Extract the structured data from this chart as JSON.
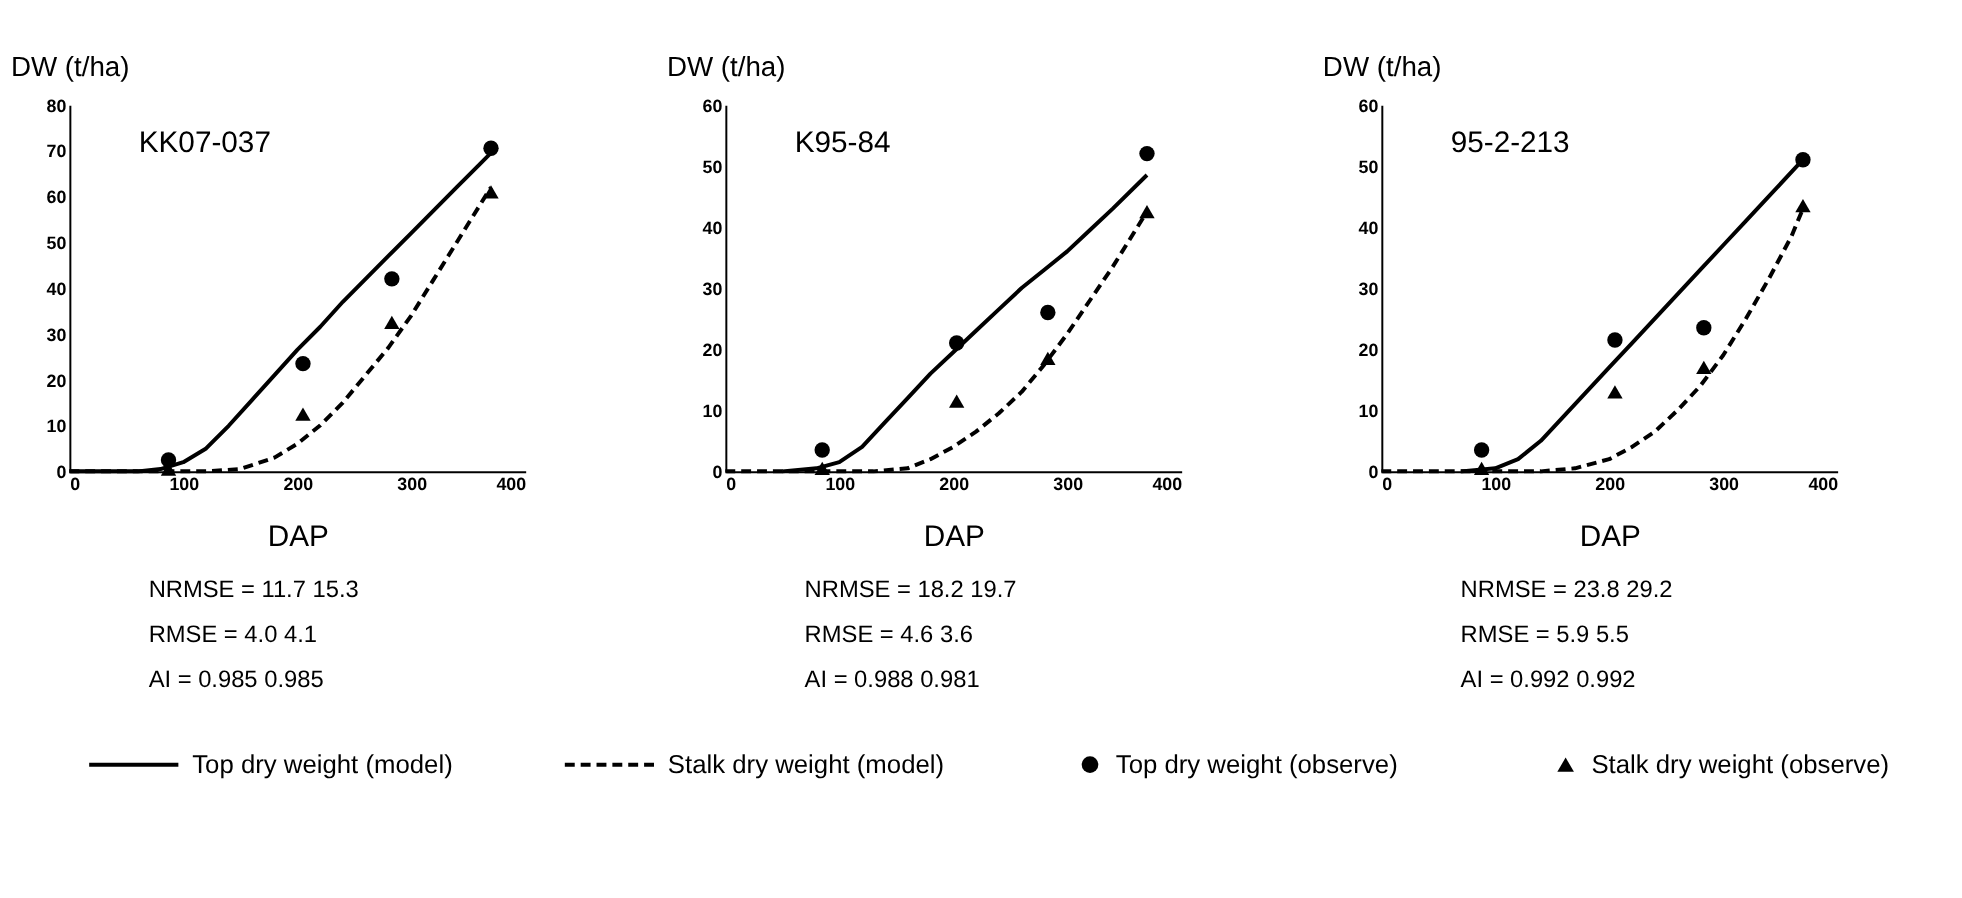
{
  "chart_data": [
    {
      "type": "line",
      "title": "KK07-037",
      "xlabel": "DAP",
      "ylabel": "DW (t/ha)",
      "xlim": [
        0,
        400
      ],
      "xticks": [
        0,
        100,
        200,
        300,
        400
      ],
      "ylim": [
        0,
        80
      ],
      "yticks": [
        0,
        10,
        20,
        30,
        40,
        50,
        60,
        70,
        80
      ],
      "grid": false,
      "legend": "bottom",
      "series": [
        {
          "name": "Top dry weight (model)",
          "line_style": "solid",
          "color": "#000000",
          "x": [
            0,
            60,
            80,
            100,
            120,
            140,
            160,
            180,
            200,
            220,
            240,
            260,
            280,
            300,
            320,
            340,
            360,
            370
          ],
          "values": [
            0,
            0,
            0.5,
            2,
            5,
            10,
            15.5,
            21,
            26.5,
            31.5,
            37,
            42,
            47,
            52,
            57,
            62,
            67,
            69.5
          ]
        },
        {
          "name": "Stalk dry weight (model)",
          "line_style": "dashed",
          "color": "#000000",
          "x": [
            0,
            120,
            150,
            180,
            200,
            220,
            240,
            260,
            280,
            300,
            320,
            340,
            360,
            370
          ],
          "values": [
            0,
            0,
            0.5,
            3,
            6,
            10,
            15,
            21,
            27,
            34,
            42,
            50,
            58,
            62
          ]
        },
        {
          "name": "Top dry weight (observe)",
          "type": "scatter",
          "marker": "circle",
          "color": "#000000",
          "x": [
            87,
            205,
            283,
            370
          ],
          "values": [
            2.5,
            23.5,
            42,
            70.5
          ]
        },
        {
          "name": "Stalk dry weight (observe)",
          "type": "scatter",
          "marker": "triangle",
          "color": "#000000",
          "x": [
            87,
            205,
            283,
            370
          ],
          "values": [
            0.5,
            12.5,
            32.5,
            61
          ]
        }
      ],
      "annotations": [
        "NRMSE   =   11.7      15.3",
        "RMSE      =   4.0        4.1",
        "AI           =   0.985    0.985"
      ]
    },
    {
      "type": "line",
      "title": "K95-84",
      "xlabel": "DAP",
      "ylabel": "DW (t/ha)",
      "xlim": [
        0,
        400
      ],
      "xticks": [
        0,
        100,
        200,
        300,
        400
      ],
      "ylim": [
        0,
        60
      ],
      "yticks": [
        0,
        10,
        20,
        30,
        40,
        50,
        60
      ],
      "grid": false,
      "series": [
        {
          "line_style": "solid",
          "color": "#000000",
          "x": [
            50,
            80,
            100,
            120,
            140,
            160,
            180,
            200,
            220,
            240,
            260,
            280,
            300,
            320,
            340,
            370
          ],
          "values": [
            0,
            0.5,
            1.5,
            4,
            8,
            12,
            16,
            19.5,
            23,
            26.5,
            30,
            33,
            36,
            39.5,
            43,
            48.5
          ]
        },
        {
          "line_style": "dashed",
          "color": "#000000",
          "x": [
            0,
            130,
            160,
            180,
            200,
            220,
            240,
            260,
            280,
            300,
            320,
            340,
            360,
            370
          ],
          "values": [
            0,
            0,
            0.5,
            2,
            4,
            6.5,
            9.5,
            13,
            17.5,
            22.5,
            28,
            33.5,
            39.5,
            42.5
          ]
        },
        {
          "type": "scatter",
          "marker": "circle",
          "color": "#000000",
          "x": [
            85,
            203,
            283,
            370
          ],
          "values": [
            3.5,
            21,
            26,
            52
          ]
        },
        {
          "type": "scatter",
          "marker": "triangle",
          "color": "#000000",
          "x": [
            85,
            203,
            283,
            370
          ],
          "values": [
            0.5,
            11.5,
            18.5,
            42.5
          ]
        }
      ],
      "annotations": [
        "NRMSE   =   18.2      19.7",
        "RMSE      =   4.6        3.6",
        "AI           =   0.988    0.981"
      ]
    },
    {
      "type": "line",
      "title": "95-2-213",
      "xlabel": "DAP",
      "ylabel": "DW (t/ha)",
      "xlim": [
        0,
        400
      ],
      "xticks": [
        0,
        100,
        200,
        300,
        400
      ],
      "ylim": [
        0,
        60
      ],
      "yticks": [
        0,
        10,
        20,
        30,
        40,
        50,
        60
      ],
      "grid": false,
      "series": [
        {
          "line_style": "solid",
          "color": "#000000",
          "x": [
            70,
            100,
            120,
            140,
            160,
            180,
            200,
            220,
            240,
            260,
            280,
            300,
            320,
            340,
            370
          ],
          "values": [
            0,
            0.5,
            2,
            5,
            9,
            13,
            17,
            21,
            25,
            29,
            33,
            37,
            41,
            45,
            51
          ]
        },
        {
          "line_style": "dashed",
          "color": "#000000",
          "x": [
            0,
            140,
            170,
            200,
            220,
            240,
            260,
            280,
            300,
            320,
            340,
            360,
            370
          ],
          "values": [
            0,
            0,
            0.5,
            2,
            4,
            6.5,
            10,
            14,
            19,
            25,
            31.5,
            38.5,
            43
          ]
        },
        {
          "type": "scatter",
          "marker": "circle",
          "color": "#000000",
          "x": [
            88,
            205,
            283,
            370
          ],
          "values": [
            3.5,
            21.5,
            23.5,
            51
          ]
        },
        {
          "type": "scatter",
          "marker": "triangle",
          "color": "#000000",
          "x": [
            88,
            205,
            283,
            370
          ],
          "values": [
            0.5,
            13,
            17,
            43.5
          ]
        }
      ],
      "annotations": [
        "NRMSE   =   23.8      29.2",
        "RMSE      =   5.9        5.5",
        "AI           =   0.992    0.992"
      ]
    }
  ]
}
